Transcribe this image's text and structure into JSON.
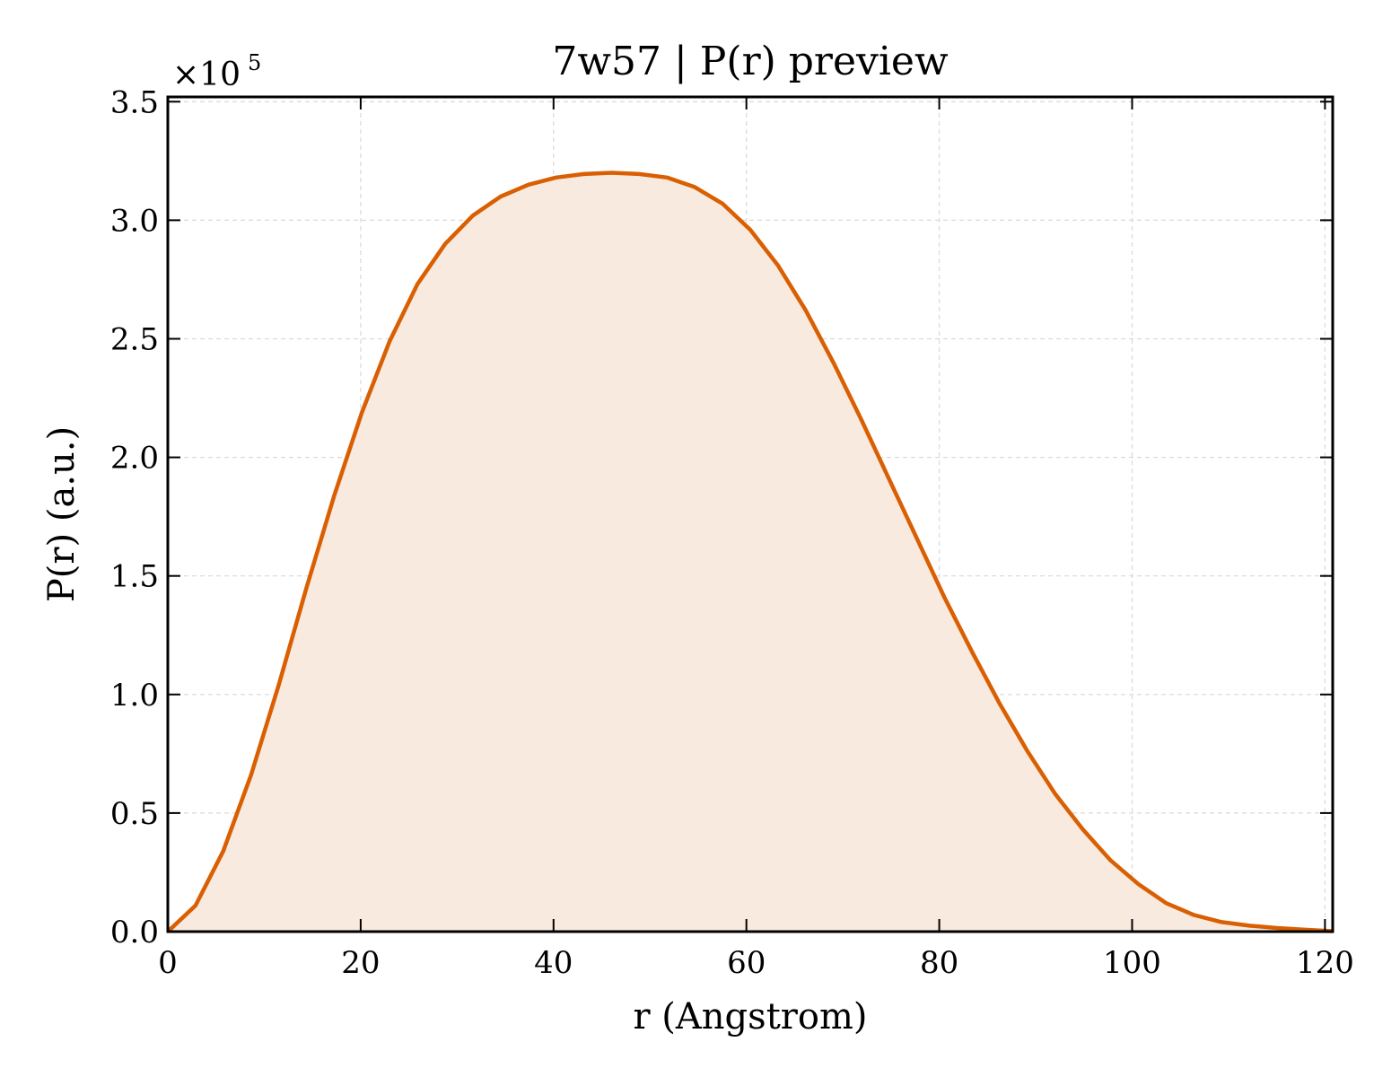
{
  "chart_data": {
    "type": "area",
    "title": "7w57 | P(r) preview",
    "xlabel": "r (Angstrom)",
    "ylabel": "P(r) (a.u.)",
    "y_offset_text": "×10",
    "y_offset_exponent": "5",
    "y_scale": 100000,
    "xlim": [
      0,
      120.8
    ],
    "ylim": [
      0,
      3.52
    ],
    "xticks": [
      0,
      20,
      40,
      60,
      80,
      100,
      120
    ],
    "xtick_labels": [
      "0",
      "20",
      "40",
      "60",
      "80",
      "100",
      "120"
    ],
    "yticks": [
      0.0,
      0.5,
      1.0,
      1.5,
      2.0,
      2.5,
      3.0,
      3.5
    ],
    "ytick_labels": [
      "0.0",
      "0.5",
      "1.0",
      "1.5",
      "2.0",
      "2.5",
      "3.0",
      "3.5"
    ],
    "grid": true,
    "line_color": "#d95f02",
    "fill_color": "#f8eadf",
    "series": [
      {
        "x": [
          0,
          2.88,
          5.75,
          8.63,
          11.5,
          14.38,
          17.26,
          20.13,
          23.01,
          25.88,
          28.76,
          31.64,
          34.51,
          37.39,
          40.26,
          43.14,
          46.02,
          48.89,
          51.77,
          54.64,
          57.52,
          60.4,
          63.27,
          66.15,
          69.02,
          71.9,
          74.78,
          77.65,
          80.53,
          83.4,
          86.28,
          89.16,
          92.03,
          94.91,
          97.78,
          100.66,
          103.54,
          106.41,
          109.29,
          112.16,
          115.04,
          117.92,
          120.79
        ],
        "y": [
          0.0,
          0.11,
          0.34,
          0.66,
          1.04,
          1.45,
          1.84,
          2.19,
          2.49,
          2.73,
          2.9,
          3.02,
          3.1,
          3.15,
          3.18,
          3.195,
          3.2,
          3.195,
          3.18,
          3.14,
          3.07,
          2.96,
          2.81,
          2.62,
          2.4,
          2.16,
          1.91,
          1.66,
          1.41,
          1.18,
          0.96,
          0.76,
          0.58,
          0.43,
          0.3,
          0.2,
          0.12,
          0.07,
          0.04,
          0.025,
          0.015,
          0.008,
          0.002
        ]
      }
    ]
  }
}
